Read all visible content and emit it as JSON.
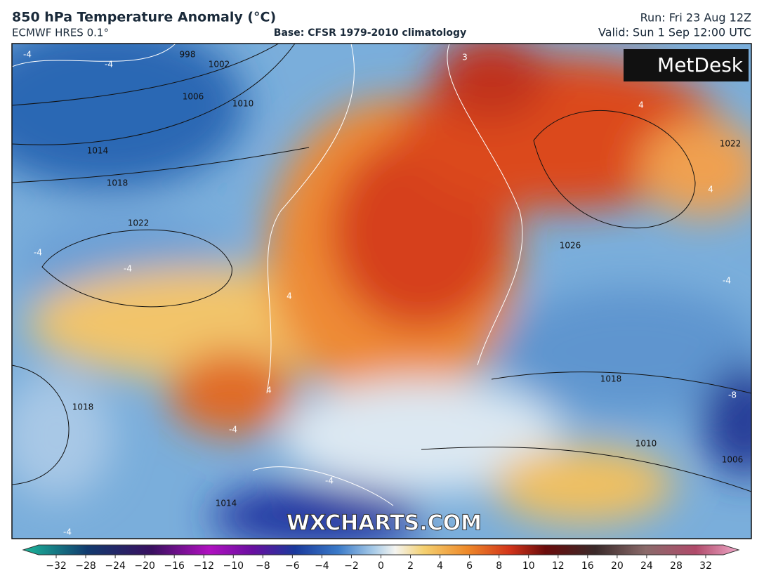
{
  "header": {
    "title": "850 hPa Temperature Anomaly (°C)",
    "model": "ECMWF HRES 0.1°",
    "base": "Base: CFSR 1979-2010 climatology",
    "run": "Run: Fri 23 Aug 12Z",
    "valid": "Valid: Sun 1 Sep 12:00 UTC"
  },
  "logo": "MetDesk",
  "watermark": "WXCHARTS.COM",
  "isobar_labels": [
    998,
    1002,
    1006,
    1010,
    1014,
    1018,
    1022,
    1026,
    1022,
    1018,
    1010,
    1006,
    1014,
    1018
  ],
  "anomaly_labels": [
    -4,
    -4,
    3,
    4,
    4,
    -4,
    -4,
    -4,
    4,
    4,
    -4,
    -8,
    -4,
    -4
  ],
  "colorbar": {
    "ticks": [
      {
        "value": -32,
        "label": "−32"
      },
      {
        "value": -28,
        "label": "−28"
      },
      {
        "value": -24,
        "label": "−24"
      },
      {
        "value": -20,
        "label": "−20"
      },
      {
        "value": -16,
        "label": "−16"
      },
      {
        "value": -12,
        "label": "−12"
      },
      {
        "value": -10,
        "label": "−10"
      },
      {
        "value": -8,
        "label": "−8"
      },
      {
        "value": -6,
        "label": "−6"
      },
      {
        "value": -4,
        "label": "−4"
      },
      {
        "value": -2,
        "label": "−2"
      },
      0,
      2,
      4,
      6,
      8,
      10,
      12,
      16,
      20,
      24,
      28,
      32
    ]
  }
}
